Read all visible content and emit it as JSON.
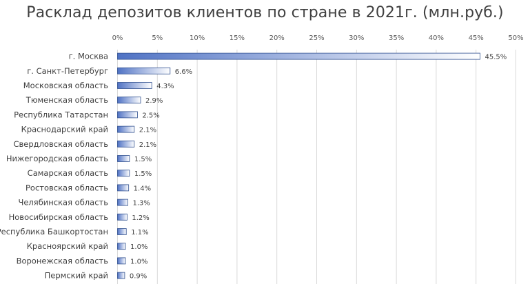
{
  "chart_data": {
    "type": "bar",
    "orientation": "horizontal",
    "title": "Расклад депозитов клиентов по стране в 2021г. (млн.руб.)",
    "xlabel": "",
    "ylabel": "",
    "xlim": [
      0,
      50
    ],
    "x_ticks": [
      "0%",
      "5%",
      "10%",
      "15%",
      "20%",
      "25%",
      "30%",
      "35%",
      "40%",
      "45%",
      "50%"
    ],
    "x_axis_position": "top",
    "grid": true,
    "legend": "none",
    "bar_color_start": "#4F72C4",
    "bar_color_end": "#FFFFFF",
    "bar_border_color": "#2F4F8F",
    "grid_color": "#D9D9D9",
    "categories": [
      "г. Москва",
      "г. Санкт-Петербург",
      "Московская область",
      "Тюменская область",
      "Республика Татарстан",
      "Краснодарский край",
      "Свердловская область",
      "Нижегородская область",
      "Самарская область",
      "Ростовская область",
      "Челябинская область",
      "Новосибирская область",
      "Республика Башкортостан",
      "Красноярский край",
      "Воронежская область",
      "Пермский край"
    ],
    "values": [
      45.5,
      6.6,
      4.3,
      2.9,
      2.5,
      2.1,
      2.1,
      1.5,
      1.5,
      1.4,
      1.3,
      1.2,
      1.1,
      1.0,
      1.0,
      0.9
    ],
    "data_labels": [
      "45.5%",
      "6.6%",
      "4.3%",
      "2.9%",
      "2.5%",
      "2.1%",
      "2.1%",
      "1.5%",
      "1.5%",
      "1.4%",
      "1.3%",
      "1.2%",
      "1.1%",
      "1.0%",
      "1.0%",
      "0.9%"
    ]
  }
}
